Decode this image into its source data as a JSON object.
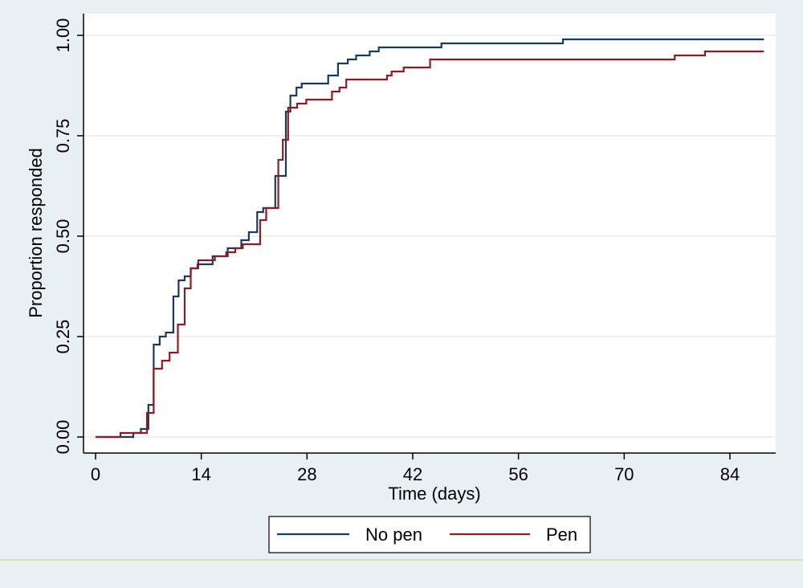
{
  "chart_data": {
    "type": "line",
    "title": "",
    "xlabel": "Time (days)",
    "ylabel": "Proportion responded",
    "xlim": [
      0,
      89
    ],
    "ylim": [
      0,
      1
    ],
    "x_ticks": [
      0,
      14,
      28,
      42,
      56,
      70,
      84
    ],
    "y_ticks": [
      0,
      0.25,
      0.5,
      0.75,
      1.0
    ],
    "x_tick_labels": [
      "0",
      "14",
      "28",
      "42",
      "56",
      "70",
      "84"
    ],
    "y_tick_labels": [
      "0.00",
      "0.25",
      "0.50",
      "0.75",
      "1.00"
    ],
    "grid": "horizontal",
    "legend_position": "bottom",
    "step": true,
    "series": [
      {
        "name": "No pen",
        "color": "#1a3a5c",
        "x": [
          0,
          4.4,
          5,
          6,
          7,
          7.7,
          8.5,
          9.3,
          10.3,
          11,
          11.8,
          12.6,
          13.5,
          15.5,
          17.5,
          19.3,
          20.3,
          21.4,
          22.2,
          23.8,
          25.2,
          25.8,
          26.6,
          27.3,
          28.2,
          30.8,
          32.1,
          33.4,
          34.5,
          36.3,
          37.5,
          38.3,
          45.8,
          47,
          61.9,
          88.5
        ],
        "y": [
          0,
          0,
          0.01,
          0.02,
          0.08,
          0.23,
          0.25,
          0.26,
          0.35,
          0.39,
          0.4,
          0.42,
          0.43,
          0.45,
          0.47,
          0.49,
          0.51,
          0.56,
          0.57,
          0.65,
          0.81,
          0.85,
          0.87,
          0.88,
          0.88,
          0.9,
          0.93,
          0.94,
          0.95,
          0.96,
          0.97,
          0.97,
          0.98,
          0.98,
          0.99,
          0.99
        ]
      },
      {
        "name": "Pen",
        "color": "#8b1c24",
        "x": [
          0,
          3.3,
          5.8,
          6.8,
          7.7,
          8.8,
          9.8,
          10.9,
          11.8,
          12.6,
          13.6,
          15.8,
          17.3,
          18.5,
          19.5,
          20.4,
          21.8,
          22.6,
          23.2,
          24.2,
          24.8,
          25.5,
          26.7,
          27.9,
          31.3,
          32.3,
          33.2,
          38.6,
          39.2,
          40.2,
          40.8,
          41.8,
          44.3,
          76.7,
          80.7,
          88.5
        ],
        "y": [
          0,
          0.01,
          0.01,
          0.06,
          0.17,
          0.19,
          0.21,
          0.28,
          0.37,
          0.42,
          0.44,
          0.45,
          0.46,
          0.47,
          0.48,
          0.48,
          0.54,
          0.57,
          0.57,
          0.69,
          0.74,
          0.82,
          0.83,
          0.84,
          0.86,
          0.87,
          0.89,
          0.9,
          0.91,
          0.91,
          0.92,
          0.92,
          0.94,
          0.95,
          0.96,
          0.96
        ]
      }
    ]
  }
}
